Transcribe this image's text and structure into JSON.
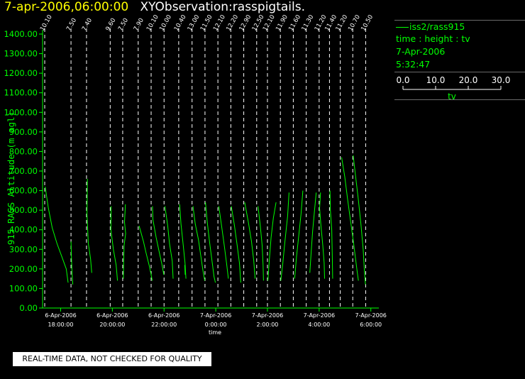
{
  "header": {
    "datetime": "7-apr-2006,06:00:00",
    "name": "XYObservation:rasspigtails."
  },
  "legend": {
    "series": "iss2/rass915",
    "subtitle": "time : height : tv",
    "date": "7-Apr-2006",
    "time": "5:32:47",
    "scale_ticks": [
      "0.0",
      "10.0",
      "20.0",
      "30.0"
    ],
    "scale_label": "tv"
  },
  "banner": "REAL-TIME DATA, NOT CHECKED FOR QUALITY",
  "colors": {
    "axis": "#00ff00",
    "profile": "#00ff00",
    "refline": "#ffffff",
    "title_date": "#ffff00",
    "background": "#000000"
  },
  "chart_data": {
    "type": "line",
    "ylabel": "915 RASS Altitude (m agl)",
    "xlabel": "time",
    "ylim": [
      0,
      1400
    ],
    "yticks": [
      "0.00",
      "100.00",
      "200.00",
      "300.00",
      "400.00",
      "500.00",
      "600.00",
      "700.00",
      "800.00",
      "900.00",
      "1000.00",
      "1100.00",
      "1200.00",
      "1300.00",
      "1400.00"
    ],
    "xlim": [
      "2006-04-06T17:18:00",
      "2006-04-07T06:12:00"
    ],
    "xticks": [
      {
        "date": "6-Apr-2006",
        "time": "18:00:00"
      },
      {
        "date": "6-Apr-2006",
        "time": "20:00:00"
      },
      {
        "date": "6-Apr-2006",
        "time": "22:00:00"
      },
      {
        "date": "7-Apr-2006",
        "time": "0:00:00"
      },
      {
        "date": "7-Apr-2006",
        "time": "2:00:00"
      },
      {
        "date": "7-Apr-2006",
        "time": "4:00:00"
      },
      {
        "date": "7-Apr-2006",
        "time": "6:00:00"
      }
    ],
    "profiles": [
      {
        "time": "2006-04-06T17:23:00",
        "label": "10.10",
        "points": [
          [
            0.2,
            620
          ],
          [
            1.6,
            510
          ],
          [
            3.3,
            410
          ],
          [
            5.4,
            330
          ],
          [
            7.6,
            260
          ],
          [
            9.5,
            200
          ],
          [
            10.3,
            130
          ]
        ]
      },
      {
        "time": "2006-04-06T18:24:00",
        "label": "7.50",
        "points": [
          [
            0.0,
            340
          ],
          [
            0.2,
            260
          ],
          [
            0.4,
            190
          ],
          [
            0.8,
            120
          ]
        ]
      },
      {
        "time": "2006-04-06T19:00:00",
        "label": "7.40",
        "points": [
          [
            0.4,
            660
          ],
          [
            0.2,
            480
          ],
          [
            0.8,
            330
          ],
          [
            1.8,
            250
          ],
          [
            2.3,
            180
          ]
        ]
      },
      {
        "time": "2006-04-06T19:55:00",
        "label": "9.60",
        "points": [
          [
            0.4,
            520
          ],
          [
            0.3,
            400
          ],
          [
            1.4,
            300
          ],
          [
            2.6,
            220
          ],
          [
            3.2,
            140
          ]
        ]
      },
      {
        "time": "2006-04-06T20:24:00",
        "label": "7.50",
        "points": [
          [
            1.2,
            530
          ],
          [
            0.8,
            440
          ],
          [
            1.3,
            380
          ],
          [
            0.6,
            320
          ],
          [
            0.4,
            230
          ],
          [
            0.3,
            150
          ]
        ]
      },
      {
        "time": "2006-04-06T21:00:00",
        "label": "7.90",
        "points": [
          [
            0.4,
            420
          ],
          [
            2.3,
            340
          ],
          [
            3.5,
            280
          ],
          [
            5.0,
            210
          ],
          [
            6.2,
            140
          ]
        ]
      },
      {
        "time": "2006-04-06T21:30:00",
        "label": "10.10",
        "points": [
          [
            0.6,
            520
          ],
          [
            0.8,
            450
          ],
          [
            2.2,
            360
          ],
          [
            3.5,
            290
          ],
          [
            4.8,
            220
          ],
          [
            5.6,
            170
          ]
        ]
      },
      {
        "time": "2006-04-06T22:00:00",
        "label": "10.00",
        "points": [
          [
            0.4,
            520
          ],
          [
            1.6,
            420
          ],
          [
            2.4,
            330
          ],
          [
            3.6,
            240
          ],
          [
            4.0,
            150
          ]
        ]
      },
      {
        "time": "2006-04-06T22:34:00",
        "label": "10.40",
        "points": [
          [
            0.4,
            530
          ],
          [
            1.0,
            430
          ],
          [
            2.0,
            320
          ],
          [
            2.8,
            230
          ],
          [
            3.2,
            150
          ]
        ]
      },
      {
        "time": "2006-04-06T22:48:00",
        "label": "",
        "points": [
          [
            0.0,
            220
          ],
          [
            0.2,
            170
          ]
        ]
      },
      {
        "time": "2006-04-06T23:05:00",
        "label": "13.00",
        "points": [
          [
            0.4,
            520
          ],
          [
            1.4,
            430
          ],
          [
            2.8,
            350
          ],
          [
            3.8,
            270
          ],
          [
            4.8,
            190
          ],
          [
            5.6,
            140
          ]
        ]
      },
      {
        "time": "2006-04-06T23:35:00",
        "label": "11.50",
        "points": [
          [
            0.2,
            540
          ],
          [
            1.0,
            440
          ],
          [
            2.0,
            340
          ],
          [
            3.0,
            250
          ],
          [
            4.0,
            160
          ],
          [
            4.6,
            130
          ]
        ]
      },
      {
        "time": "2006-04-07T00:05:00",
        "label": "12.10",
        "points": [
          [
            0.4,
            520
          ],
          [
            1.6,
            420
          ],
          [
            2.8,
            320
          ],
          [
            3.8,
            230
          ],
          [
            4.6,
            150
          ]
        ]
      },
      {
        "time": "2006-04-07T00:35:00",
        "label": "12.20",
        "points": [
          [
            0.2,
            520
          ],
          [
            1.6,
            420
          ],
          [
            2.8,
            320
          ],
          [
            3.8,
            230
          ],
          [
            4.4,
            130
          ]
        ]
      },
      {
        "time": "2006-04-07T01:05:00",
        "label": "12.90",
        "points": [
          [
            0.4,
            540
          ],
          [
            2.0,
            440
          ],
          [
            3.4,
            340
          ],
          [
            4.4,
            240
          ],
          [
            5.0,
            150
          ]
        ]
      },
      {
        "time": "2006-04-07T01:35:00",
        "label": "12.50",
        "points": [
          [
            0.6,
            520
          ],
          [
            1.6,
            420
          ],
          [
            2.4,
            320
          ],
          [
            2.8,
            220
          ],
          [
            3.0,
            140
          ]
        ]
      },
      {
        "time": "2006-04-07T02:00:00",
        "label": "12.10",
        "points": [
          [
            3.8,
            540
          ],
          [
            2.6,
            460
          ],
          [
            1.6,
            360
          ],
          [
            0.8,
            240
          ],
          [
            0.2,
            140
          ]
        ]
      },
      {
        "time": "2006-04-07T02:30:00",
        "label": "11.90",
        "points": [
          [
            3.8,
            590
          ],
          [
            3.2,
            470
          ],
          [
            2.0,
            340
          ],
          [
            1.0,
            220
          ],
          [
            0.2,
            140
          ]
        ]
      },
      {
        "time": "2006-04-07T03:00:00",
        "label": "11.60",
        "points": [
          [
            4.2,
            600
          ],
          [
            3.4,
            480
          ],
          [
            2.4,
            370
          ],
          [
            1.4,
            260
          ],
          [
            0.6,
            150
          ]
        ]
      },
      {
        "time": "2006-04-07T03:30:00",
        "label": "11.30",
        "points": [
          [
            4.4,
            590
          ],
          [
            3.6,
            490
          ],
          [
            2.8,
            390
          ],
          [
            2.2,
            290
          ],
          [
            1.6,
            180
          ]
        ]
      },
      {
        "time": "2006-04-07T04:00:00",
        "label": "11.20",
        "points": [
          [
            0.6,
            590
          ],
          [
            0.2,
            510
          ],
          [
            0.8,
            420
          ],
          [
            1.6,
            320
          ],
          [
            2.2,
            230
          ],
          [
            2.4,
            150
          ]
        ]
      },
      {
        "time": "2006-04-07T04:24:00",
        "label": "11.40",
        "points": [
          [
            0.2,
            600
          ],
          [
            0.4,
            500
          ],
          [
            1.0,
            400
          ],
          [
            1.2,
            280
          ],
          [
            1.4,
            150
          ]
        ]
      },
      {
        "time": "2006-04-07T04:49:00",
        "label": "11.20",
        "points": [
          [
            0.6,
            770
          ],
          [
            2.0,
            670
          ],
          [
            3.2,
            560
          ],
          [
            4.6,
            440
          ],
          [
            6.0,
            320
          ],
          [
            7.4,
            190
          ],
          [
            8.0,
            140
          ]
        ]
      },
      {
        "time": "2006-04-07T05:18:00",
        "label": "10.70",
        "points": [
          [
            0.2,
            780
          ],
          [
            1.2,
            680
          ],
          [
            2.4,
            560
          ],
          [
            3.6,
            430
          ],
          [
            4.6,
            300
          ],
          [
            5.2,
            180
          ],
          [
            5.6,
            120
          ]
        ]
      },
      {
        "time": "2006-04-07T05:48:00",
        "label": "10.50",
        "points": []
      }
    ]
  }
}
